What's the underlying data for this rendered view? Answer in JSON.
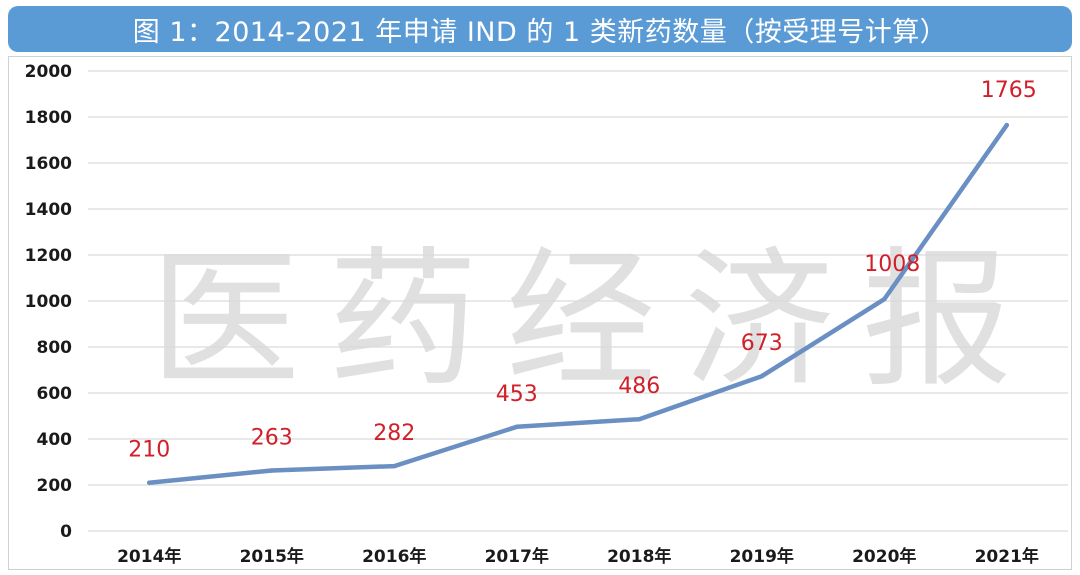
{
  "title": "图 1：2014-2021 年申请 IND 的 1 类新药数量（按受理号计算）",
  "watermark": "医药经济报",
  "colors": {
    "title_bg": "#5b9bd5",
    "line": "#6a8fc3",
    "data_label": "#d0202a",
    "grid": "#d9d9d9"
  },
  "chart_data": {
    "type": "line",
    "title": "图 1：2014-2021 年申请 IND 的 1 类新药数量（按受理号计算）",
    "xlabel": "",
    "ylabel": "",
    "categories": [
      "2014年",
      "2015年",
      "2016年",
      "2017年",
      "2018年",
      "2019年",
      "2020年",
      "2021年"
    ],
    "values": [
      210,
      263,
      282,
      453,
      486,
      673,
      1008,
      1765
    ],
    "ylim": [
      0,
      2000
    ],
    "yticks": [
      0,
      200,
      400,
      600,
      800,
      1000,
      1200,
      1400,
      1600,
      1800,
      2000
    ],
    "grid": true,
    "legend": "none"
  }
}
